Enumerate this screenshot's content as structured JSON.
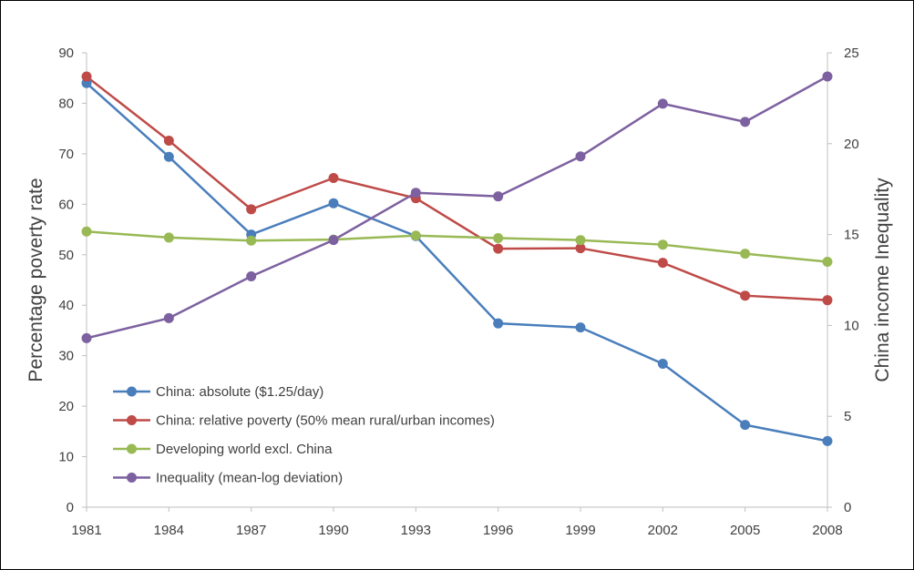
{
  "chart_data": {
    "type": "line",
    "title": "",
    "xlabel": "",
    "ylabel": "Percentage poverty rate",
    "y2label": "China income Inequality",
    "categories": [
      "1981",
      "1984",
      "1987",
      "1990",
      "1993",
      "1996",
      "1999",
      "2002",
      "2005",
      "2008"
    ],
    "ylim": [
      0,
      90
    ],
    "y2lim": [
      0,
      25
    ],
    "yticks": [
      "0",
      "10",
      "20",
      "30",
      "40",
      "50",
      "60",
      "70",
      "80",
      "90"
    ],
    "y2ticks": [
      "0",
      "5",
      "10",
      "15",
      "20",
      "25"
    ],
    "grid": false,
    "legend_position": "bottom-left",
    "series": [
      {
        "name": "China: absolute ($1.25/day)",
        "axis": "left",
        "color": "#4a7ebb",
        "values": [
          84.0,
          69.4,
          54.0,
          60.2,
          53.7,
          36.4,
          35.6,
          28.4,
          16.3,
          13.1
        ]
      },
      {
        "name": "China: relative poverty (50% mean rural/urban incomes)",
        "axis": "left",
        "color": "#be4b48",
        "values": [
          85.3,
          72.6,
          59.0,
          65.2,
          61.2,
          51.2,
          51.3,
          48.4,
          41.9,
          41.0
        ]
      },
      {
        "name": "Developing world excl. China",
        "axis": "left",
        "color": "#98b954",
        "values": [
          54.6,
          53.4,
          52.8,
          53.0,
          53.8,
          53.3,
          52.9,
          52.0,
          50.2,
          48.6
        ]
      },
      {
        "name": "Inequality (mean-log deviation)",
        "axis": "right",
        "color": "#7d60a0",
        "values": [
          9.3,
          10.4,
          12.7,
          14.7,
          17.3,
          17.1,
          19.3,
          22.2,
          21.2,
          23.7
        ]
      }
    ]
  }
}
